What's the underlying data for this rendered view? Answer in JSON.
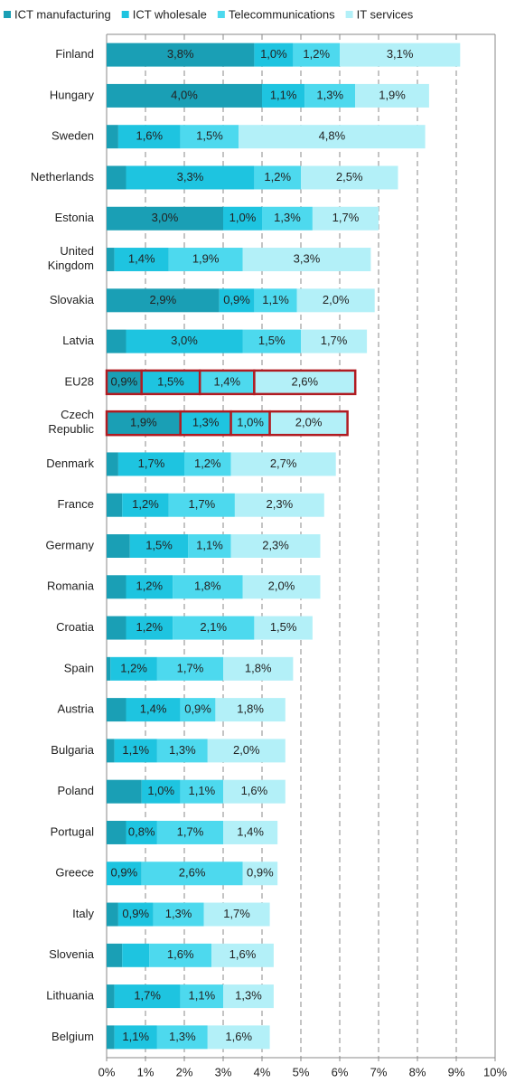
{
  "chart_data": {
    "type": "stacked-barh",
    "categories": [
      "Finland",
      "Hungary",
      "Sweden",
      "Netherlands",
      "Estonia",
      "United Kingdom",
      "Slovakia",
      "Latvia",
      "EU28",
      "Czech Republic",
      "Denmark",
      "France",
      "Germany",
      "Romania",
      "Croatia",
      "Spain",
      "Austria",
      "Bulgaria",
      "Poland",
      "Portugal",
      "Greece",
      "Italy",
      "Slovenia",
      "Lithuania",
      "Belgium"
    ],
    "series": [
      {
        "name": "ICT manufacturing",
        "color": "#1a9fb5",
        "values": [
          3.8,
          4.0,
          0.3,
          0.5,
          3.0,
          0.2,
          2.9,
          0.5,
          0.9,
          1.9,
          0.3,
          0.4,
          0.6,
          0.5,
          0.5,
          0.1,
          0.5,
          0.2,
          0.9,
          0.5,
          0.0,
          0.3,
          0.4,
          0.2,
          0.2
        ],
        "value_labels": [
          "3,8%",
          "4,0%",
          null,
          null,
          "3,0%",
          null,
          "2,9%",
          null,
          "0,9%",
          "1,9%",
          null,
          null,
          null,
          null,
          null,
          null,
          null,
          null,
          null,
          null,
          null,
          null,
          null,
          null,
          null
        ]
      },
      {
        "name": "ICT wholesale",
        "color": "#1ec4e0",
        "values": [
          1.0,
          1.1,
          1.6,
          3.3,
          1.0,
          1.4,
          0.9,
          3.0,
          1.5,
          1.3,
          1.7,
          1.2,
          1.5,
          1.2,
          1.2,
          1.2,
          1.4,
          1.1,
          1.0,
          0.8,
          0.9,
          0.9,
          0.7,
          1.7,
          1.1
        ],
        "value_labels": [
          "1,0%",
          "1,1%",
          "1,6%",
          "3,3%",
          "1,0%",
          "1,4%",
          "0,9%",
          "3,0%",
          "1,5%",
          "1,3%",
          "1,7%",
          "1,2%",
          "1,5%",
          "1,2%",
          "1,2%",
          "1,2%",
          "1,4%",
          "1,1%",
          "1,0%",
          "0,8%",
          "0,9%",
          "0,9%",
          null,
          "1,7%",
          "1,1%"
        ]
      },
      {
        "name": "Telecommunications",
        "color": "#4dd9ee",
        "values": [
          1.2,
          1.3,
          1.5,
          1.2,
          1.3,
          1.9,
          1.1,
          1.5,
          1.4,
          1.0,
          1.2,
          1.7,
          1.1,
          1.8,
          2.1,
          1.7,
          0.9,
          1.3,
          1.1,
          1.7,
          2.6,
          1.3,
          1.6,
          1.1,
          1.3
        ],
        "value_labels": [
          "1,2%",
          "1,3%",
          "1,5%",
          "1,2%",
          "1,3%",
          "1,9%",
          "1,1%",
          "1,5%",
          "1,4%",
          "1,0%",
          "1,2%",
          "1,7%",
          "1,1%",
          "1,8%",
          "2,1%",
          "1,7%",
          "0,9%",
          "1,3%",
          "1,1%",
          "1,7%",
          "2,6%",
          "1,3%",
          "1,6%",
          "1,1%",
          "1,3%"
        ]
      },
      {
        "name": "IT services",
        "color": "#b3f0f8",
        "values": [
          3.1,
          1.9,
          4.8,
          2.5,
          1.7,
          3.3,
          2.0,
          1.7,
          2.6,
          2.0,
          2.7,
          2.3,
          2.3,
          2.0,
          1.5,
          1.8,
          1.8,
          2.0,
          1.6,
          1.4,
          0.9,
          1.7,
          1.6,
          1.3,
          1.6
        ],
        "value_labels": [
          "3,1%",
          "1,9%",
          "4,8%",
          "2,5%",
          "1,7%",
          "3,3%",
          "2,0%",
          "1,7%",
          "2,6%",
          "2,0%",
          "2,7%",
          "2,3%",
          "2,3%",
          "2,0%",
          "1,5%",
          "1,8%",
          "1,8%",
          "2,0%",
          "1,6%",
          "1,4%",
          "0,9%",
          "1,7%",
          "1,6%",
          "1,3%",
          "1,6%"
        ]
      }
    ],
    "highlight": [
      8,
      9
    ],
    "highlight_color": "#b01c22",
    "xlim": [
      0,
      10
    ],
    "xticks": [
      {
        "value": 0,
        "label": "0%"
      },
      {
        "value": 1,
        "label": "1%"
      },
      {
        "value": 2,
        "label": "2%"
      },
      {
        "value": 3,
        "label": "3%"
      },
      {
        "value": 4,
        "label": "4%"
      },
      {
        "value": 5,
        "label": "5%"
      },
      {
        "value": 6,
        "label": "6%"
      },
      {
        "value": 7,
        "label": "7%"
      },
      {
        "value": 8,
        "label": "8%"
      },
      {
        "value": 9,
        "label": "9%"
      },
      {
        "value": 10,
        "label": "10%"
      }
    ],
    "grid": true,
    "legend": "top"
  }
}
